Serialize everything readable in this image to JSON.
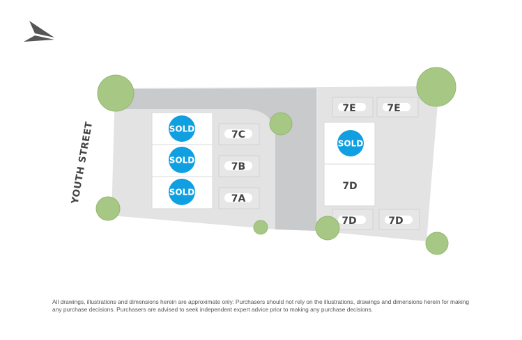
{
  "street_name": "YOUTH STREET",
  "compass": {
    "icon": "north-arrow-icon"
  },
  "colors": {
    "sold": "#109fe0",
    "land": "#e3e3e3",
    "road": "#c9cacc",
    "tree": "#a6c884"
  },
  "townhouses": [
    {
      "label": "SOLD",
      "status": "sold"
    },
    {
      "label": "SOLD",
      "status": "sold"
    },
    {
      "label": "SOLD",
      "status": "sold"
    },
    {
      "label": "SOLD",
      "status": "sold"
    },
    {
      "label": "7D",
      "status": "available"
    }
  ],
  "parking": [
    "7C",
    "7B",
    "7A",
    "7E",
    "7E",
    "7D",
    "7D"
  ],
  "disclaimer": "All drawings, illustrations and dimensions herein are approximate only. Purchasers should not rely on the illustrations, drawings and dimensions herein for making any purchase decisions. Purchasers are advised to seek independent expert advice prior to making any purchase decisions."
}
